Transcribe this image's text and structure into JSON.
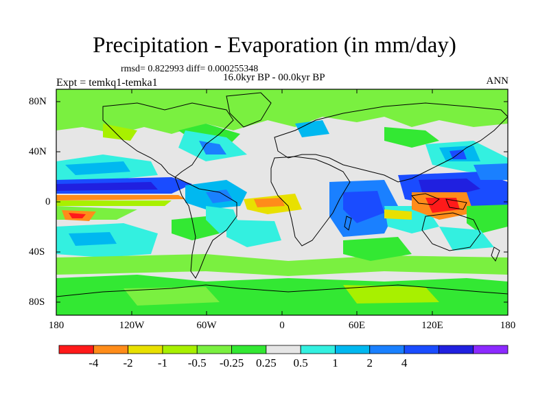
{
  "title": "Precipitation - Evaporation (in mm/day)",
  "stats": "rmsd= 0.822993 diff= 0.000255348",
  "period": "16.0kyr BP - 00.0kyr BP",
  "expt": "Expt = temkq1-temka1",
  "season": "ANN",
  "map": {
    "lat_ticks": [
      "80N",
      "40N",
      "0",
      "40S",
      "80S"
    ],
    "lon_ticks": [
      "180",
      "120W",
      "60W",
      "0",
      "60E",
      "120E",
      "180"
    ]
  },
  "colorbar": {
    "labels": [
      "-4",
      "-2",
      "-1",
      "-0.5",
      "-0.25",
      "0.25",
      "0.5",
      "1",
      "2",
      "4"
    ],
    "colors": [
      "#ff1a1a",
      "#ff8c1a",
      "#e8e000",
      "#a8f000",
      "#7af040",
      "#33e833",
      "#e6e6e6",
      "#33f0e0",
      "#00b8f0",
      "#1a80ff",
      "#1a4cff",
      "#2020e0",
      "#8c2aff"
    ]
  }
}
